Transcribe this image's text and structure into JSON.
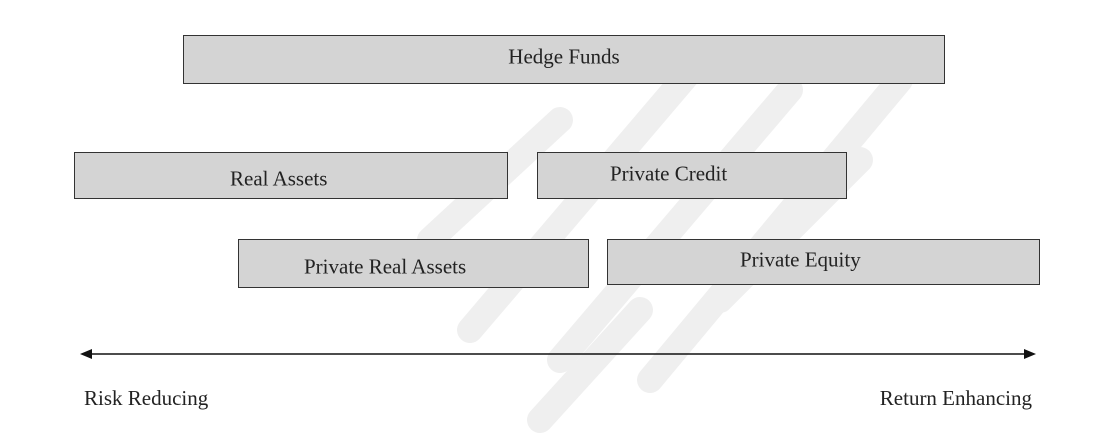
{
  "diagram": {
    "boxes": {
      "hedge_funds": "Hedge Funds",
      "real_assets": "Real Assets",
      "private_credit": "Private Credit",
      "private_real_assets": "Private Real Assets",
      "private_equity": "Private Equity"
    },
    "axis": {
      "left_label": "Risk Reducing",
      "right_label": "Return Enhancing",
      "direction": "bidirectional"
    }
  },
  "colors": {
    "box_fill": "#d4d4d4",
    "box_border": "#333333",
    "text": "#222222",
    "watermark": "#eeeeee"
  }
}
